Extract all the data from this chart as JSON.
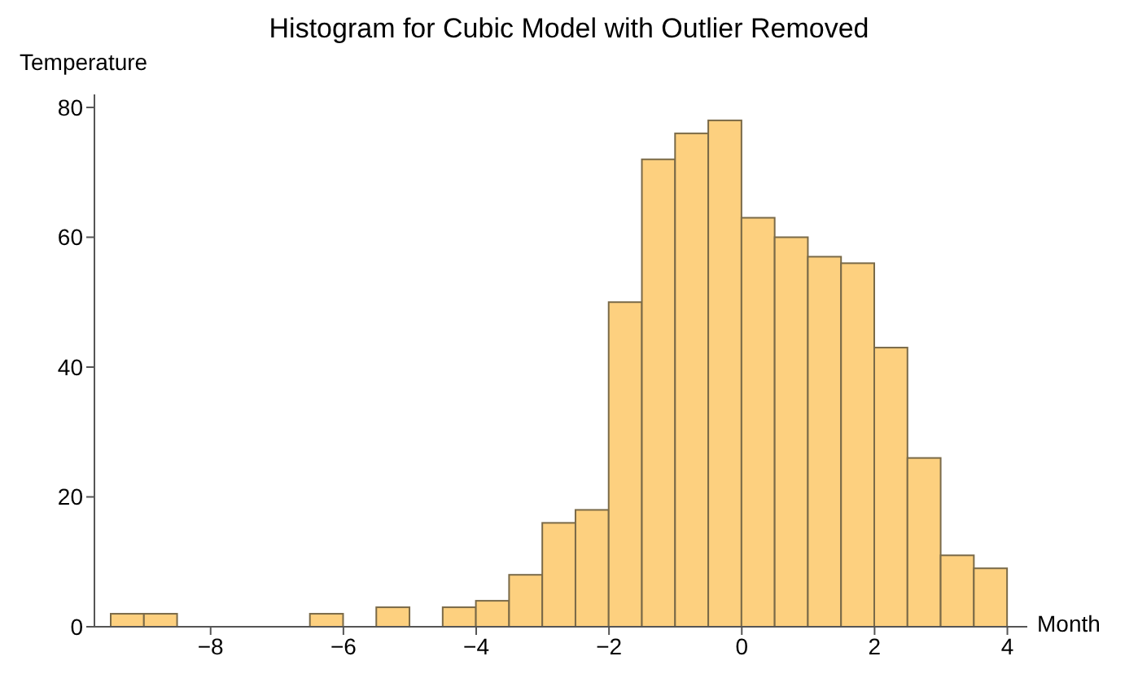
{
  "chart_data": {
    "type": "histogram",
    "title": "Histogram for Cubic Model with Outlier Removed",
    "xlabel": "Month",
    "ylabel": "Temperature",
    "bins": [
      -9.5,
      -9,
      -8.5,
      -8,
      -7.5,
      -7,
      -6.5,
      -6,
      -5.5,
      -5,
      -4.5,
      -4,
      -3.5,
      -3,
      -2.5,
      -2,
      -1.5,
      -1,
      -0.5,
      0,
      0.5,
      1,
      1.5,
      2,
      2.5,
      3,
      3.5,
      4
    ],
    "values": [
      2,
      2,
      0,
      0,
      0,
      0,
      2,
      0,
      3,
      0,
      3,
      4,
      8,
      16,
      18,
      50,
      72,
      76,
      78,
      63,
      60,
      57,
      56,
      43,
      26,
      11,
      9
    ],
    "color": "#fdd07f",
    "xlim": [
      -9.75,
      4.3
    ],
    "ylim": [
      0,
      82
    ],
    "xticks": [
      -8,
      -6,
      -4,
      -2,
      0,
      2,
      4
    ],
    "yticks": [
      0,
      20,
      40,
      60,
      80
    ]
  }
}
